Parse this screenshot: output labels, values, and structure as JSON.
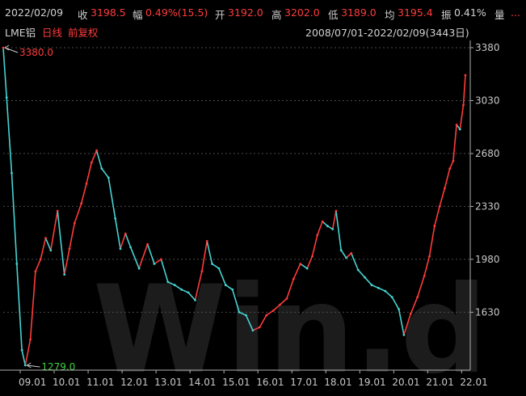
{
  "header": {
    "date": "2022/02/09",
    "close_label": "收",
    "close_value": "3198.5",
    "change_label": "幅",
    "change_value": "0.49%(15.5)",
    "open_label": "开",
    "open_value": "3192.0",
    "high_label": "高",
    "high_value": "3202.0",
    "low_label": "低",
    "low_value": "3189.0",
    "avg_label": "均",
    "avg_value": "3195.4",
    "amp_label": "振",
    "amp_value": "0.41%",
    "vol_label": "量",
    "vol_value": "..."
  },
  "subheader": {
    "instrument": "LME铝",
    "period": "日线",
    "adjust": "前复权",
    "range": "2008/07/01-2022/02/09(3443日)"
  },
  "watermark": "Win.d",
  "colors": {
    "up": "#ff3b3b",
    "down": "#46d3d3",
    "background": "#000000",
    "axis": "#b0b0b0"
  },
  "chart_data": {
    "type": "line",
    "title": "",
    "xlabel": "",
    "ylabel": "",
    "ylim": [
      1279,
      3380
    ],
    "yticks": [
      1630,
      1980,
      2330,
      2680,
      3030,
      3380
    ],
    "xticks": [
      "09.01",
      "10.01",
      "11.01",
      "12.01",
      "13.01",
      "14.01",
      "15.01",
      "16.01",
      "17.01",
      "18.01",
      "19.01",
      "20.01",
      "21.01",
      "22.01"
    ],
    "xlim": [
      2008.5,
      2022.11
    ],
    "series": [
      {
        "x": [
          2008.5,
          2008.6,
          2008.75,
          2008.9,
          2009.05,
          2009.15,
          2009.3,
          2009.45,
          2009.6,
          2009.75,
          2009.9,
          2010.1,
          2010.3,
          2010.45,
          2010.6,
          2010.8,
          2010.95,
          2011.1,
          2011.25,
          2011.4,
          2011.6,
          2011.8,
          2011.95,
          2012.1,
          2012.25,
          2012.5,
          2012.75,
          2012.95,
          2013.15,
          2013.35,
          2013.55,
          2013.75,
          2013.95,
          2014.15,
          2014.35,
          2014.5,
          2014.65,
          2014.85,
          2015.05,
          2015.25,
          2015.45,
          2015.65,
          2015.85,
          2016.05,
          2016.25,
          2016.45,
          2016.65,
          2016.85,
          2017.05,
          2017.25,
          2017.45,
          2017.6,
          2017.75,
          2017.9,
          2018.05,
          2018.2,
          2018.3,
          2018.45,
          2018.6,
          2018.75,
          2018.95,
          2019.15,
          2019.35,
          2019.55,
          2019.75,
          2019.95,
          2020.15,
          2020.3,
          2020.5,
          2020.7,
          2020.9,
          2021.05,
          2021.2,
          2021.35,
          2021.5,
          2021.65,
          2021.75,
          2021.85,
          2021.95,
          2022.05,
          2022.11
        ],
        "values": [
          3380,
          3050,
          2550,
          1950,
          1379,
          1279,
          1450,
          1900,
          1980,
          2120,
          2040,
          2300,
          1880,
          2050,
          2220,
          2350,
          2480,
          2620,
          2700,
          2580,
          2520,
          2250,
          2050,
          2150,
          2060,
          1920,
          2080,
          1950,
          1980,
          1830,
          1810,
          1780,
          1760,
          1710,
          1900,
          2100,
          1950,
          1920,
          1810,
          1780,
          1630,
          1610,
          1510,
          1530,
          1610,
          1640,
          1680,
          1720,
          1850,
          1950,
          1920,
          2000,
          2140,
          2230,
          2200,
          2180,
          2300,
          2040,
          1990,
          2020,
          1910,
          1860,
          1810,
          1790,
          1770,
          1730,
          1650,
          1480,
          1620,
          1730,
          1870,
          2000,
          2200,
          2330,
          2450,
          2580,
          2630,
          2870,
          2840,
          3000,
          3198
        ]
      }
    ],
    "annotations": [
      {
        "text": "3380.0",
        "x": 2008.5,
        "y": 3380,
        "color": "red"
      },
      {
        "text": "1279.0",
        "x": 2009.15,
        "y": 1279,
        "color": "green"
      }
    ]
  }
}
